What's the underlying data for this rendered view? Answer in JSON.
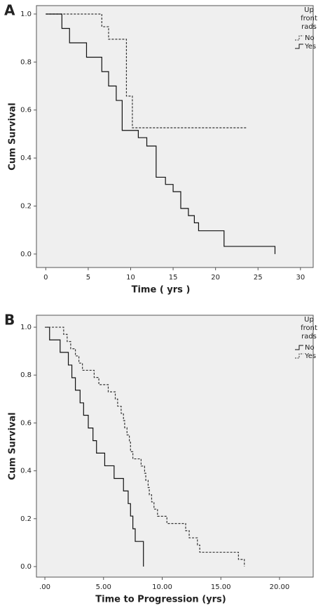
{
  "chart_data": [
    {
      "type": "line",
      "label": "A",
      "xlabel": "Time ( yrs )",
      "ylabel": "Cum Survival",
      "legend_title": [
        "Up",
        "front",
        "rads"
      ],
      "legend": "right",
      "xlim": [
        -1.1,
        31.5
      ],
      "ylim": [
        -0.056,
        1.035
      ],
      "xticks": [
        0,
        5,
        10,
        15,
        20,
        25,
        30
      ],
      "yticks": [
        {
          "value": 0,
          "label": "0.0"
        },
        {
          "value": 0.2,
          "label": "0.2"
        },
        {
          "value": 0.4,
          "label": "0.4"
        },
        {
          "value": 0.6,
          "label": "0.6"
        },
        {
          "value": 0.8,
          "label": "0.8"
        },
        {
          "value": 1,
          "label": "1.0"
        }
      ],
      "series": [
        {
          "name": "No",
          "color": "#333333",
          "dashed": true,
          "x": [
            0,
            6.6,
            7.4,
            9.5,
            10.2,
            23.6
          ],
          "values": [
            1,
            0.947,
            0.895,
            0.658,
            0.526,
            0.526
          ]
        },
        {
          "name": "Yes",
          "color": "#111111",
          "dashed": false,
          "x": [
            0,
            1.9,
            2.8,
            4.8,
            6.6,
            7.4,
            8.3,
            9.0,
            10.9,
            11.9,
            13.0,
            14.1,
            15.0,
            15.9,
            16.8,
            17.5,
            18.0,
            21.0,
            27.0
          ],
          "values": [
            1,
            0.94,
            0.88,
            0.82,
            0.76,
            0.7,
            0.64,
            0.515,
            0.485,
            0.45,
            0.32,
            0.29,
            0.26,
            0.19,
            0.16,
            0.13,
            0.097,
            0.032,
            0
          ]
        }
      ]
    },
    {
      "type": "line",
      "label": "B",
      "xlabel": "Time to Progression (yrs)",
      "ylabel": "Cum Survival",
      "legend_title": [
        "Up",
        "front",
        "rads"
      ],
      "legend": "right",
      "xlim": [
        -0.72,
        22.87
      ],
      "ylim": [
        -0.044,
        1.05
      ],
      "xticks": [
        {
          "value": 0,
          "label": ".00"
        },
        {
          "value": 5,
          "label": "5.00"
        },
        {
          "value": 10,
          "label": "10.00"
        },
        {
          "value": 15,
          "label": "15.00"
        },
        {
          "value": 20,
          "label": "20.00"
        }
      ],
      "yticks": [
        {
          "value": 0,
          "label": "0.0"
        },
        {
          "value": 0.2,
          "label": "0.2"
        },
        {
          "value": 0.4,
          "label": "0.4"
        },
        {
          "value": 0.6,
          "label": "0.6"
        },
        {
          "value": 0.8,
          "label": "0.8"
        },
        {
          "value": 1,
          "label": "1.0"
        }
      ],
      "series": [
        {
          "name": "No",
          "color": "#111111",
          "dashed": false,
          "x": [
            0,
            0.4,
            1.3,
            2.0,
            2.3,
            2.6,
            3.0,
            3.3,
            3.7,
            4.1,
            4.4,
            5.1,
            5.9,
            6.7,
            7.1,
            7.3,
            7.5,
            7.7,
            8.4
          ],
          "values": [
            1,
            0.947,
            0.895,
            0.842,
            0.789,
            0.737,
            0.684,
            0.632,
            0.579,
            0.526,
            0.474,
            0.421,
            0.368,
            0.316,
            0.263,
            0.211,
            0.158,
            0.105,
            0
          ]
        },
        {
          "name": "Yes",
          "color": "#333333",
          "dashed": true,
          "x": [
            0,
            1.6,
            1.9,
            2.2,
            2.6,
            2.9,
            3.2,
            4.2,
            4.6,
            5.4,
            6.0,
            6.2,
            6.5,
            6.7,
            6.8,
            7.0,
            7.2,
            7.3,
            7.5,
            8.2,
            8.5,
            8.6,
            8.8,
            8.9,
            9.1,
            9.3,
            9.6,
            10.4,
            12.0,
            12.3,
            13.0,
            13.2,
            16.5,
            17.0
          ],
          "values": [
            1,
            0.97,
            0.94,
            0.91,
            0.88,
            0.85,
            0.82,
            0.79,
            0.76,
            0.73,
            0.7,
            0.67,
            0.64,
            0.61,
            0.58,
            0.55,
            0.52,
            0.48,
            0.45,
            0.42,
            0.39,
            0.36,
            0.33,
            0.3,
            0.27,
            0.24,
            0.21,
            0.18,
            0.15,
            0.12,
            0.09,
            0.06,
            0.03,
            0
          ]
        }
      ]
    }
  ]
}
